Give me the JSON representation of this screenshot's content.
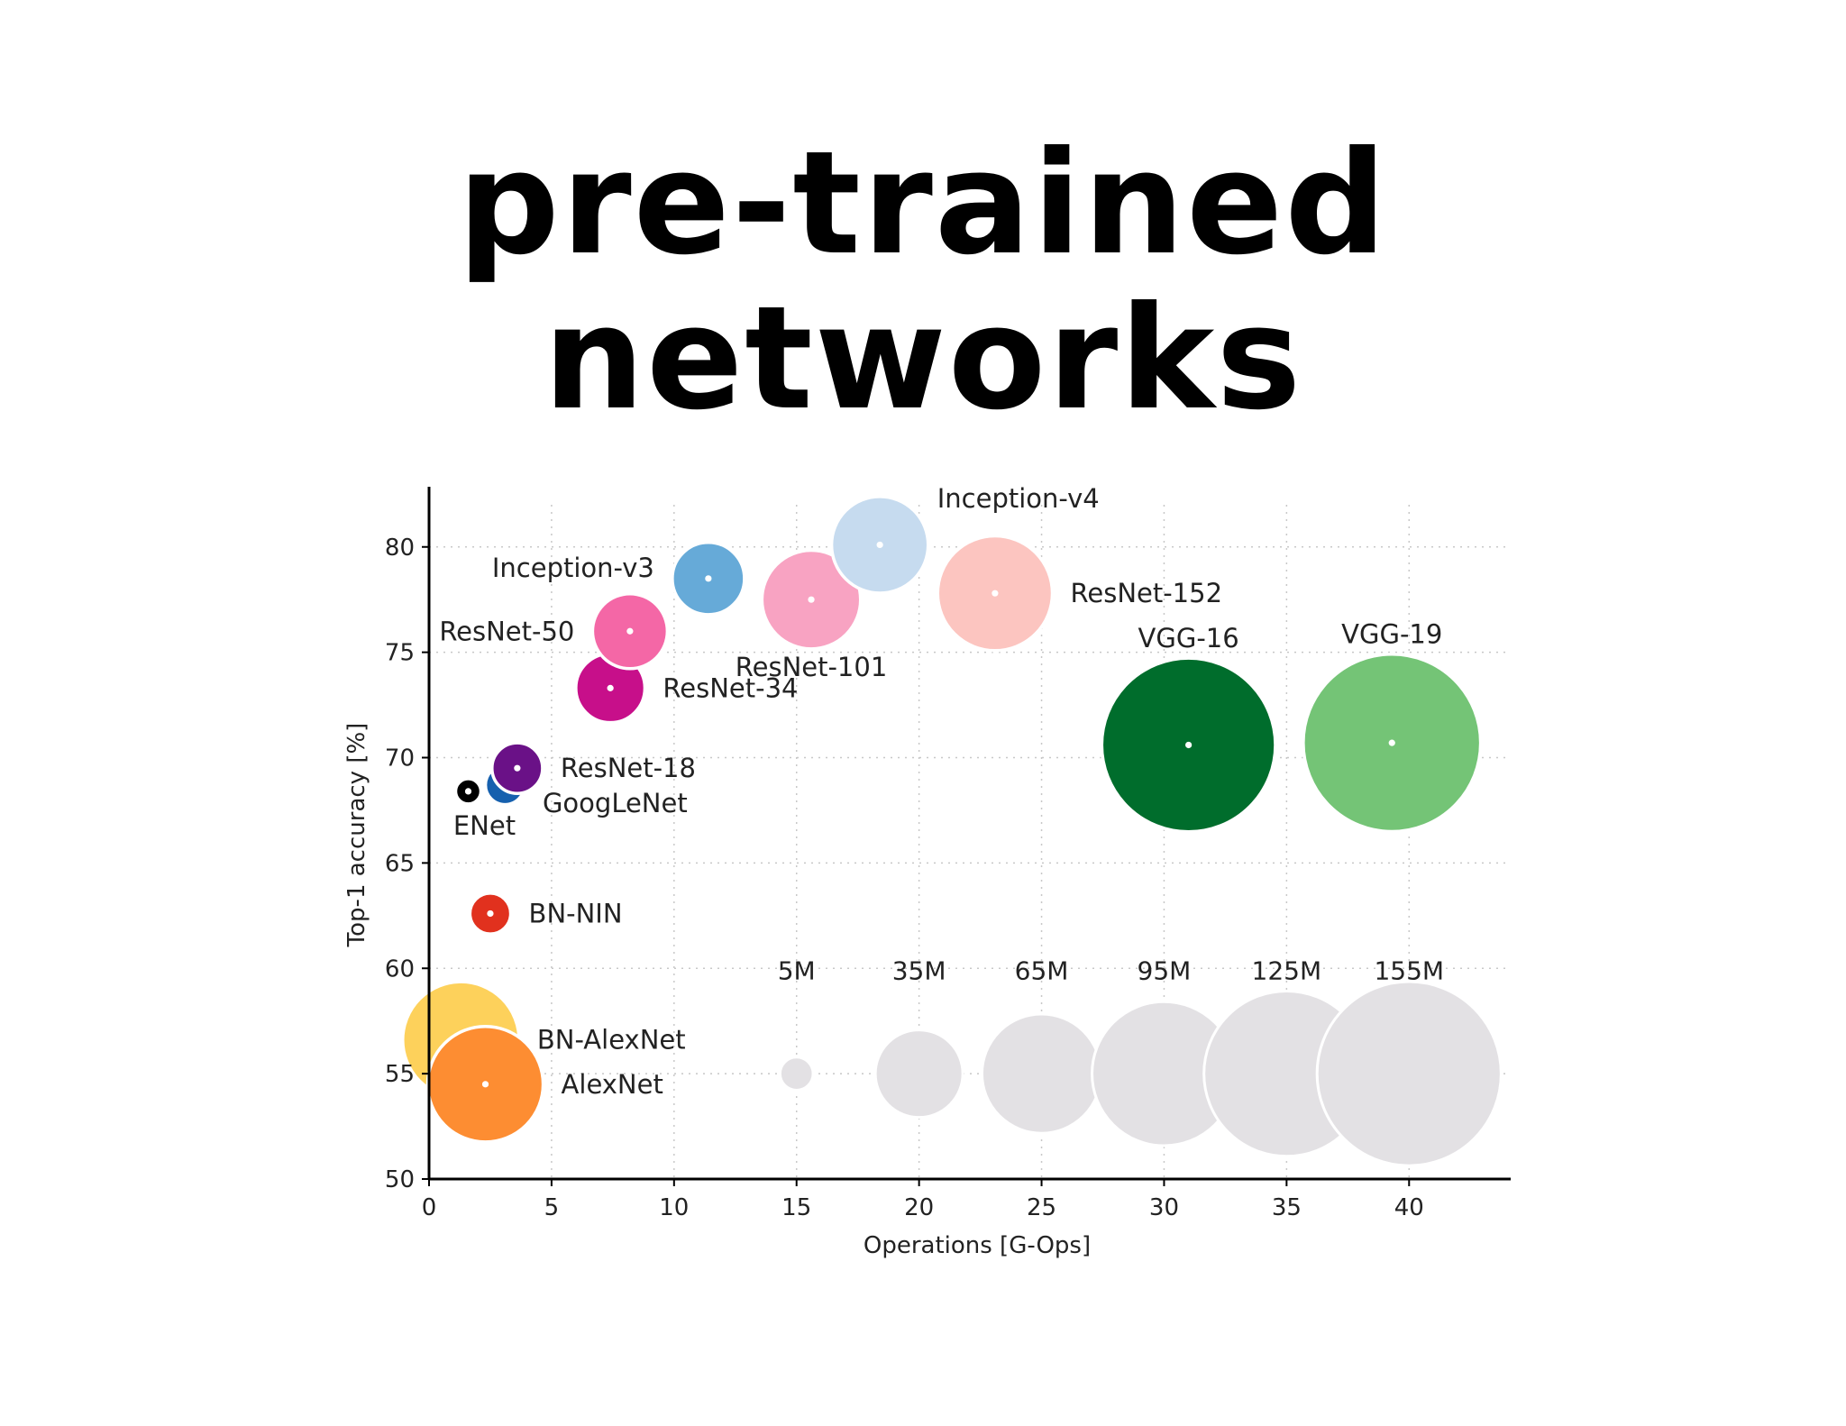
{
  "slide": {
    "title_line1": "pre-trained",
    "title_line2": "networks"
  },
  "chart_data": {
    "type": "scatter",
    "xlabel": "Operations [G-Ops]",
    "ylabel": "Top-1 accuracy [%]",
    "xlim": [
      0,
      44
    ],
    "ylim": [
      50,
      82
    ],
    "x_ticks": [
      0,
      5,
      10,
      15,
      20,
      25,
      30,
      35,
      40
    ],
    "y_ticks": [
      50,
      55,
      60,
      65,
      70,
      75,
      80
    ],
    "grid": true,
    "size_unit": "parameters (M)",
    "points": [
      {
        "label": "BN-AlexNet",
        "x": 1.3,
        "y": 56.6,
        "params_m": 62,
        "color": "#fdd15b",
        "label_pos": "right"
      },
      {
        "label": "AlexNet",
        "x": 2.3,
        "y": 54.5,
        "params_m": 61,
        "color": "#fd8d32",
        "label_pos": "right"
      },
      {
        "label": "BN-NIN",
        "x": 2.5,
        "y": 62.6,
        "params_m": 7.6,
        "color": "#e1311e",
        "label_pos": "right"
      },
      {
        "label": "ENet",
        "x": 1.6,
        "y": 68.4,
        "params_m": 0.37,
        "color": "#000000",
        "label_pos": "below"
      },
      {
        "label": "GoogLeNet",
        "x": 3.1,
        "y": 68.7,
        "params_m": 7,
        "color": "#1560ae",
        "label_pos": "right-below"
      },
      {
        "label": "ResNet-18",
        "x": 3.6,
        "y": 69.5,
        "params_m": 11.7,
        "color": "#6a1187",
        "label_pos": "right"
      },
      {
        "label": "ResNet-34",
        "x": 7.4,
        "y": 73.3,
        "params_m": 21.8,
        "color": "#c70f8a",
        "label_pos": "right"
      },
      {
        "label": "ResNet-50",
        "x": 8.2,
        "y": 76.0,
        "params_m": 25.6,
        "color": "#f467a6",
        "label_pos": "left"
      },
      {
        "label": "Inception-v3",
        "x": 11.4,
        "y": 78.5,
        "params_m": 23.8,
        "color": "#66aad8",
        "label_pos": "left-above"
      },
      {
        "label": "ResNet-101",
        "x": 15.6,
        "y": 77.5,
        "params_m": 44.5,
        "color": "#f8a3c2",
        "label_pos": "below"
      },
      {
        "label": "Inception-v4",
        "x": 18.4,
        "y": 80.1,
        "params_m": 42.7,
        "color": "#c6dbef",
        "label_pos": "right-above"
      },
      {
        "label": "ResNet-152",
        "x": 23.1,
        "y": 77.8,
        "params_m": 60.2,
        "color": "#fcc5c0",
        "label_pos": "right"
      },
      {
        "label": "VGG-16",
        "x": 31.0,
        "y": 70.6,
        "params_m": 138,
        "color": "#006d2c",
        "label_pos": "above"
      },
      {
        "label": "VGG-19",
        "x": 39.3,
        "y": 70.7,
        "params_m": 144,
        "color": "#74c476",
        "label_pos": "above"
      }
    ],
    "size_legend": [
      {
        "label": "5M",
        "x": 15,
        "y": 55,
        "params_m": 5
      },
      {
        "label": "35M",
        "x": 20,
        "y": 55,
        "params_m": 35
      },
      {
        "label": "65M",
        "x": 25,
        "y": 55,
        "params_m": 65
      },
      {
        "label": "95M",
        "x": 30,
        "y": 55,
        "params_m": 95
      },
      {
        "label": "125M",
        "x": 35,
        "y": 55,
        "params_m": 125
      },
      {
        "label": "155M",
        "x": 40,
        "y": 55,
        "params_m": 155
      }
    ],
    "legend_color": "#e3e1e4"
  }
}
